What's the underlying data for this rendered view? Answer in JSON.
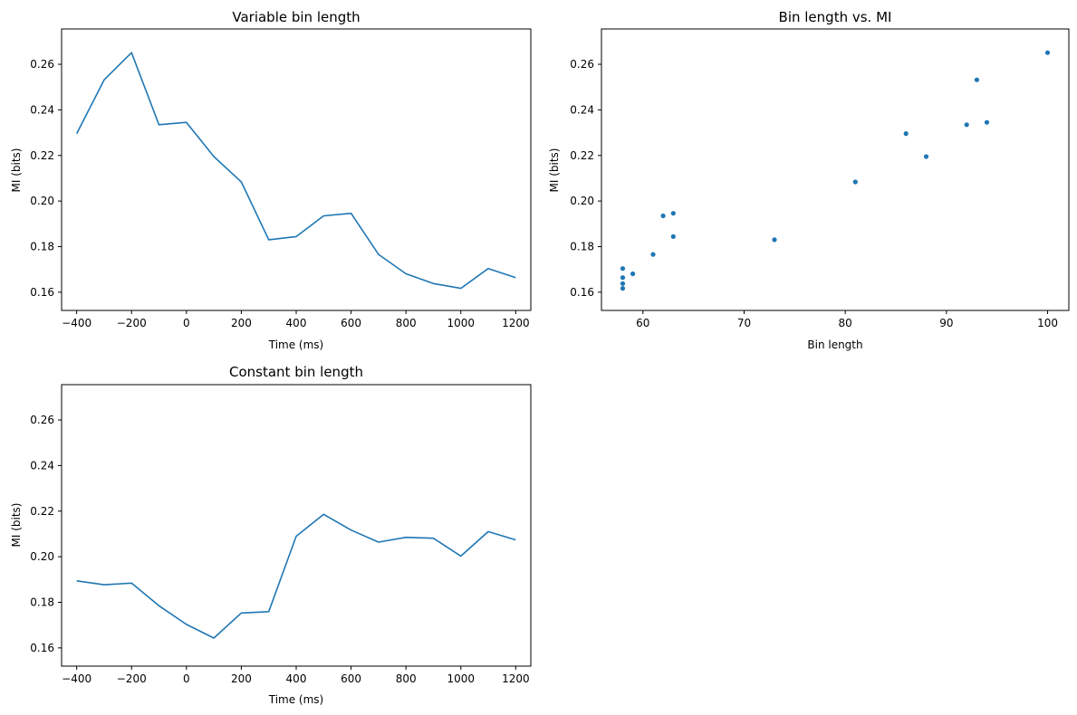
{
  "chart_data": [
    {
      "id": "variable",
      "type": "line",
      "title": "Variable bin length",
      "xlabel": "Time (ms)",
      "ylabel": "MI (bits)",
      "xlim": [
        -455,
        1255
      ],
      "ylim": [
        0.152,
        0.2755
      ],
      "xticks": [
        -400,
        -200,
        0,
        200,
        400,
        600,
        800,
        1000,
        1200
      ],
      "xtick_labels": [
        "−400",
        "−200",
        "0",
        "200",
        "400",
        "600",
        "800",
        "1000",
        "1200"
      ],
      "yticks": [
        0.16,
        0.18,
        0.2,
        0.22,
        0.24,
        0.26
      ],
      "ytick_labels": [
        "0.16",
        "0.18",
        "0.20",
        "0.22",
        "0.24",
        "0.26"
      ],
      "color": "#1f77b4",
      "x": [
        -400,
        -300,
        -200,
        -100,
        0,
        100,
        200,
        300,
        400,
        500,
        600,
        700,
        800,
        900,
        1000,
        1100,
        1200
      ],
      "y": [
        0.2296,
        0.2532,
        0.2651,
        0.2335,
        0.2345,
        0.2195,
        0.2084,
        0.183,
        0.1844,
        0.1935,
        0.1946,
        0.1766,
        0.1681,
        0.1638,
        0.1617,
        0.1704,
        0.1664
      ]
    },
    {
      "id": "scatter",
      "type": "scatter",
      "title": "Bin length vs. MI",
      "xlabel": "Bin length",
      "ylabel": "MI (bits)",
      "xlim": [
        55.9,
        102.1
      ],
      "ylim": [
        0.152,
        0.2755
      ],
      "xticks": [
        60,
        70,
        80,
        90,
        100
      ],
      "xtick_labels": [
        "60",
        "70",
        "80",
        "90",
        "100"
      ],
      "yticks": [
        0.16,
        0.18,
        0.2,
        0.22,
        0.24,
        0.26
      ],
      "ytick_labels": [
        "0.16",
        "0.18",
        "0.20",
        "0.22",
        "0.24",
        "0.26"
      ],
      "color": "#1f77b4",
      "x": [
        100,
        93,
        94,
        92,
        86,
        88,
        81,
        73,
        63,
        62,
        63,
        61,
        59,
        58,
        58,
        58,
        58
      ],
      "y": [
        0.2651,
        0.2532,
        0.2345,
        0.2335,
        0.2296,
        0.2195,
        0.2084,
        0.183,
        0.1946,
        0.1935,
        0.1844,
        0.1766,
        0.1681,
        0.1704,
        0.1664,
        0.1638,
        0.1617
      ]
    },
    {
      "id": "constant",
      "type": "line",
      "title": "Constant bin length",
      "xlabel": "Time (ms)",
      "ylabel": "MI (bits)",
      "xlim": [
        -455,
        1255
      ],
      "ylim": [
        0.152,
        0.2755
      ],
      "xticks": [
        -400,
        -200,
        0,
        200,
        400,
        600,
        800,
        1000,
        1200
      ],
      "xtick_labels": [
        "−400",
        "−200",
        "0",
        "200",
        "400",
        "600",
        "800",
        "1000",
        "1200"
      ],
      "yticks": [
        0.16,
        0.18,
        0.2,
        0.22,
        0.24,
        0.26
      ],
      "ytick_labels": [
        "0.16",
        "0.18",
        "0.20",
        "0.22",
        "0.24",
        "0.26"
      ],
      "color": "#1f77b4",
      "x": [
        -400,
        -300,
        -200,
        -100,
        0,
        100,
        200,
        300,
        400,
        500,
        600,
        700,
        800,
        900,
        1000,
        1100,
        1200
      ],
      "y": [
        0.1894,
        0.1877,
        0.1884,
        0.1785,
        0.1703,
        0.1643,
        0.1753,
        0.1759,
        0.209,
        0.2186,
        0.2117,
        0.2064,
        0.2085,
        0.2081,
        0.2003,
        0.211,
        0.2074
      ]
    }
  ]
}
